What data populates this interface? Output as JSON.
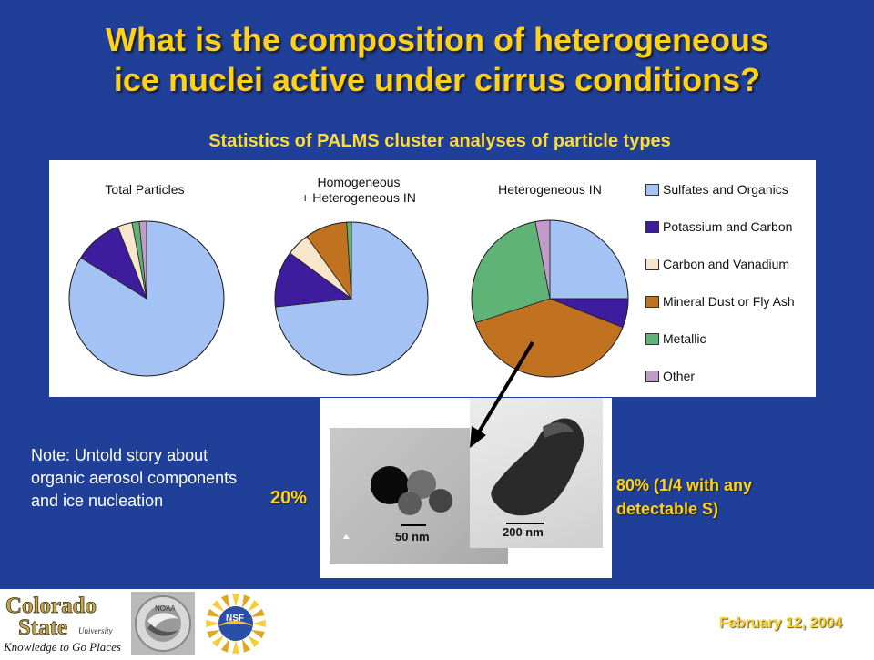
{
  "title_line1": "What is the composition of heterogeneous",
  "title_line2": "ice nuclei active under cirrus conditions?",
  "subtitle": "Statistics of PALMS cluster analyses of particle types",
  "chart_data": {
    "type": "pie",
    "categories": [
      "Sulfates and Organics",
      "Potassium and Carbon",
      "Carbon and Vanadium",
      "Mineral Dust or Fly Ash",
      "Metallic",
      "Other"
    ],
    "colors": [
      "#a4c2f4",
      "#3d1c9e",
      "#f8e6cc",
      "#c07221",
      "#5fb377",
      "#c09bc7"
    ],
    "legend_position": "right",
    "charts": [
      {
        "title": "Total Particles",
        "values": [
          83,
          10,
          3,
          0,
          1.5,
          1.5
        ]
      },
      {
        "title": "Homogeneous\n+ Heterogeneous IN",
        "values": [
          74,
          12,
          5,
          9,
          1,
          0
        ]
      },
      {
        "title": "Heterogeneous IN",
        "values": [
          25,
          6,
          0,
          39,
          27,
          3
        ]
      }
    ]
  },
  "note": "Note: Untold story about organic aerosol components and ice nucleation",
  "micrographs": {
    "scale_left": "50 nm",
    "scale_right": "200 nm"
  },
  "percent_left": "20%",
  "percent_right": "80% (1/4 with any detectable S)",
  "footer": {
    "date": "February 12, 2004",
    "csu_name": "Colorado State University",
    "csu_tagline": "Knowledge to Go Places",
    "nsf_text": "NSF"
  }
}
